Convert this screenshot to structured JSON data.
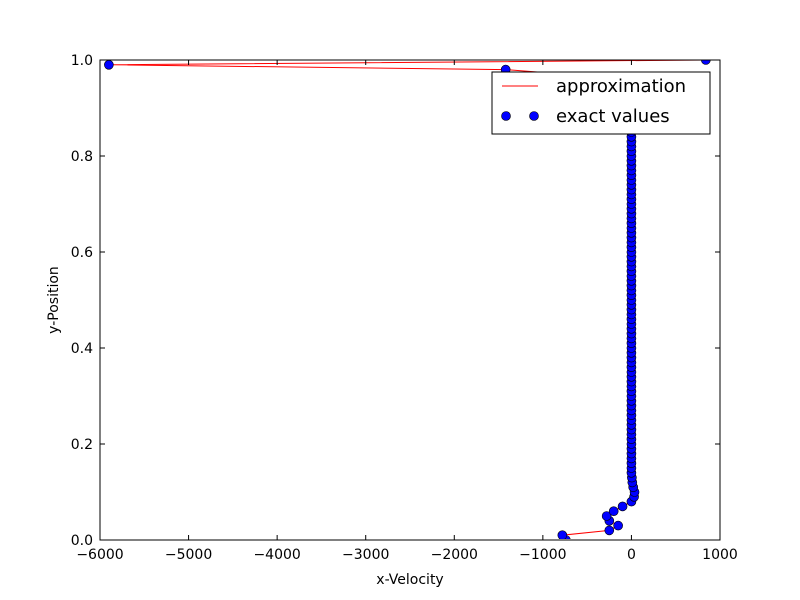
{
  "chart_data": {
    "type": "line",
    "xlabel": "x-Velocity",
    "ylabel": "y-Position",
    "xlim": [
      -6000,
      1000
    ],
    "ylim": [
      0.0,
      1.0
    ],
    "xticks": [
      -6000,
      -5000,
      -4000,
      -3000,
      -2000,
      -1000,
      0,
      1000
    ],
    "xtick_labels": [
      "−6000",
      "−5000",
      "−4000",
      "−3000",
      "−2000",
      "−1000",
      "0",
      "1000"
    ],
    "yticks": [
      0.0,
      0.2,
      0.4,
      0.6,
      0.8,
      1.0
    ],
    "ytick_labels": [
      "0.0",
      "0.2",
      "0.4",
      "0.6",
      "0.8",
      "1.0"
    ],
    "grid": false,
    "legend_position": "top-right",
    "series": [
      {
        "name": "approximation",
        "style": "line",
        "color": "#ff0000",
        "points": [
          [
            -740,
            0.0
          ],
          [
            -780,
            0.01
          ],
          [
            -250,
            0.02
          ],
          [
            -150,
            0.03
          ],
          [
            -250,
            0.04
          ],
          [
            -280,
            0.05
          ],
          [
            -200,
            0.06
          ],
          [
            -100,
            0.07
          ],
          [
            0,
            0.08
          ],
          [
            30,
            0.09
          ],
          [
            35,
            0.1
          ],
          [
            20,
            0.11
          ],
          [
            10,
            0.12
          ],
          [
            5,
            0.13
          ],
          [
            0,
            0.14
          ],
          [
            0,
            0.15
          ],
          [
            0,
            0.16
          ],
          [
            0,
            0.2
          ],
          [
            0,
            0.3
          ],
          [
            0,
            0.4
          ],
          [
            0,
            0.5
          ],
          [
            0,
            0.6
          ],
          [
            0,
            0.7
          ],
          [
            0,
            0.8
          ],
          [
            0,
            0.84
          ],
          [
            0,
            0.9
          ],
          [
            0,
            0.96
          ],
          [
            -1420,
            0.98
          ],
          [
            -5900,
            0.99
          ],
          [
            840,
            1.0
          ]
        ]
      },
      {
        "name": "exact values",
        "style": "markers",
        "color": "#0000ff",
        "points": [
          [
            -740,
            0.0
          ],
          [
            -780,
            0.01
          ],
          [
            -250,
            0.02
          ],
          [
            -150,
            0.03
          ],
          [
            -250,
            0.04
          ],
          [
            -280,
            0.05
          ],
          [
            -200,
            0.06
          ],
          [
            -100,
            0.07
          ],
          [
            0,
            0.08
          ],
          [
            30,
            0.09
          ],
          [
            35,
            0.1
          ],
          [
            20,
            0.11
          ],
          [
            10,
            0.12
          ],
          [
            5,
            0.13
          ],
          [
            0,
            0.14
          ],
          [
            0,
            0.15
          ],
          [
            0,
            0.16
          ],
          [
            0,
            0.17
          ],
          [
            0,
            0.18
          ],
          [
            0,
            0.19
          ],
          [
            0,
            0.2
          ],
          [
            0,
            0.21
          ],
          [
            0,
            0.22
          ],
          [
            0,
            0.23
          ],
          [
            0,
            0.24
          ],
          [
            0,
            0.25
          ],
          [
            0,
            0.26
          ],
          [
            0,
            0.27
          ],
          [
            0,
            0.28
          ],
          [
            0,
            0.29
          ],
          [
            0,
            0.3
          ],
          [
            0,
            0.31
          ],
          [
            0,
            0.32
          ],
          [
            0,
            0.33
          ],
          [
            0,
            0.34
          ],
          [
            0,
            0.35
          ],
          [
            0,
            0.36
          ],
          [
            0,
            0.37
          ],
          [
            0,
            0.38
          ],
          [
            0,
            0.39
          ],
          [
            0,
            0.4
          ],
          [
            0,
            0.41
          ],
          [
            0,
            0.42
          ],
          [
            0,
            0.43
          ],
          [
            0,
            0.44
          ],
          [
            0,
            0.45
          ],
          [
            0,
            0.46
          ],
          [
            0,
            0.47
          ],
          [
            0,
            0.48
          ],
          [
            0,
            0.49
          ],
          [
            0,
            0.5
          ],
          [
            0,
            0.51
          ],
          [
            0,
            0.52
          ],
          [
            0,
            0.53
          ],
          [
            0,
            0.54
          ],
          [
            0,
            0.55
          ],
          [
            0,
            0.56
          ],
          [
            0,
            0.57
          ],
          [
            0,
            0.58
          ],
          [
            0,
            0.59
          ],
          [
            0,
            0.6
          ],
          [
            0,
            0.61
          ],
          [
            0,
            0.62
          ],
          [
            0,
            0.63
          ],
          [
            0,
            0.64
          ],
          [
            0,
            0.65
          ],
          [
            0,
            0.66
          ],
          [
            0,
            0.67
          ],
          [
            0,
            0.68
          ],
          [
            0,
            0.69
          ],
          [
            0,
            0.7
          ],
          [
            0,
            0.71
          ],
          [
            0,
            0.72
          ],
          [
            0,
            0.73
          ],
          [
            0,
            0.74
          ],
          [
            0,
            0.75
          ],
          [
            0,
            0.76
          ],
          [
            0,
            0.77
          ],
          [
            0,
            0.78
          ],
          [
            0,
            0.79
          ],
          [
            0,
            0.8
          ],
          [
            0,
            0.81
          ],
          [
            0,
            0.82
          ],
          [
            0,
            0.83
          ],
          [
            0,
            0.84
          ],
          [
            0,
            0.85
          ],
          [
            0,
            0.86
          ],
          [
            -1420,
            0.98
          ],
          [
            -5900,
            0.99
          ],
          [
            840,
            1.0
          ]
        ]
      }
    ]
  }
}
